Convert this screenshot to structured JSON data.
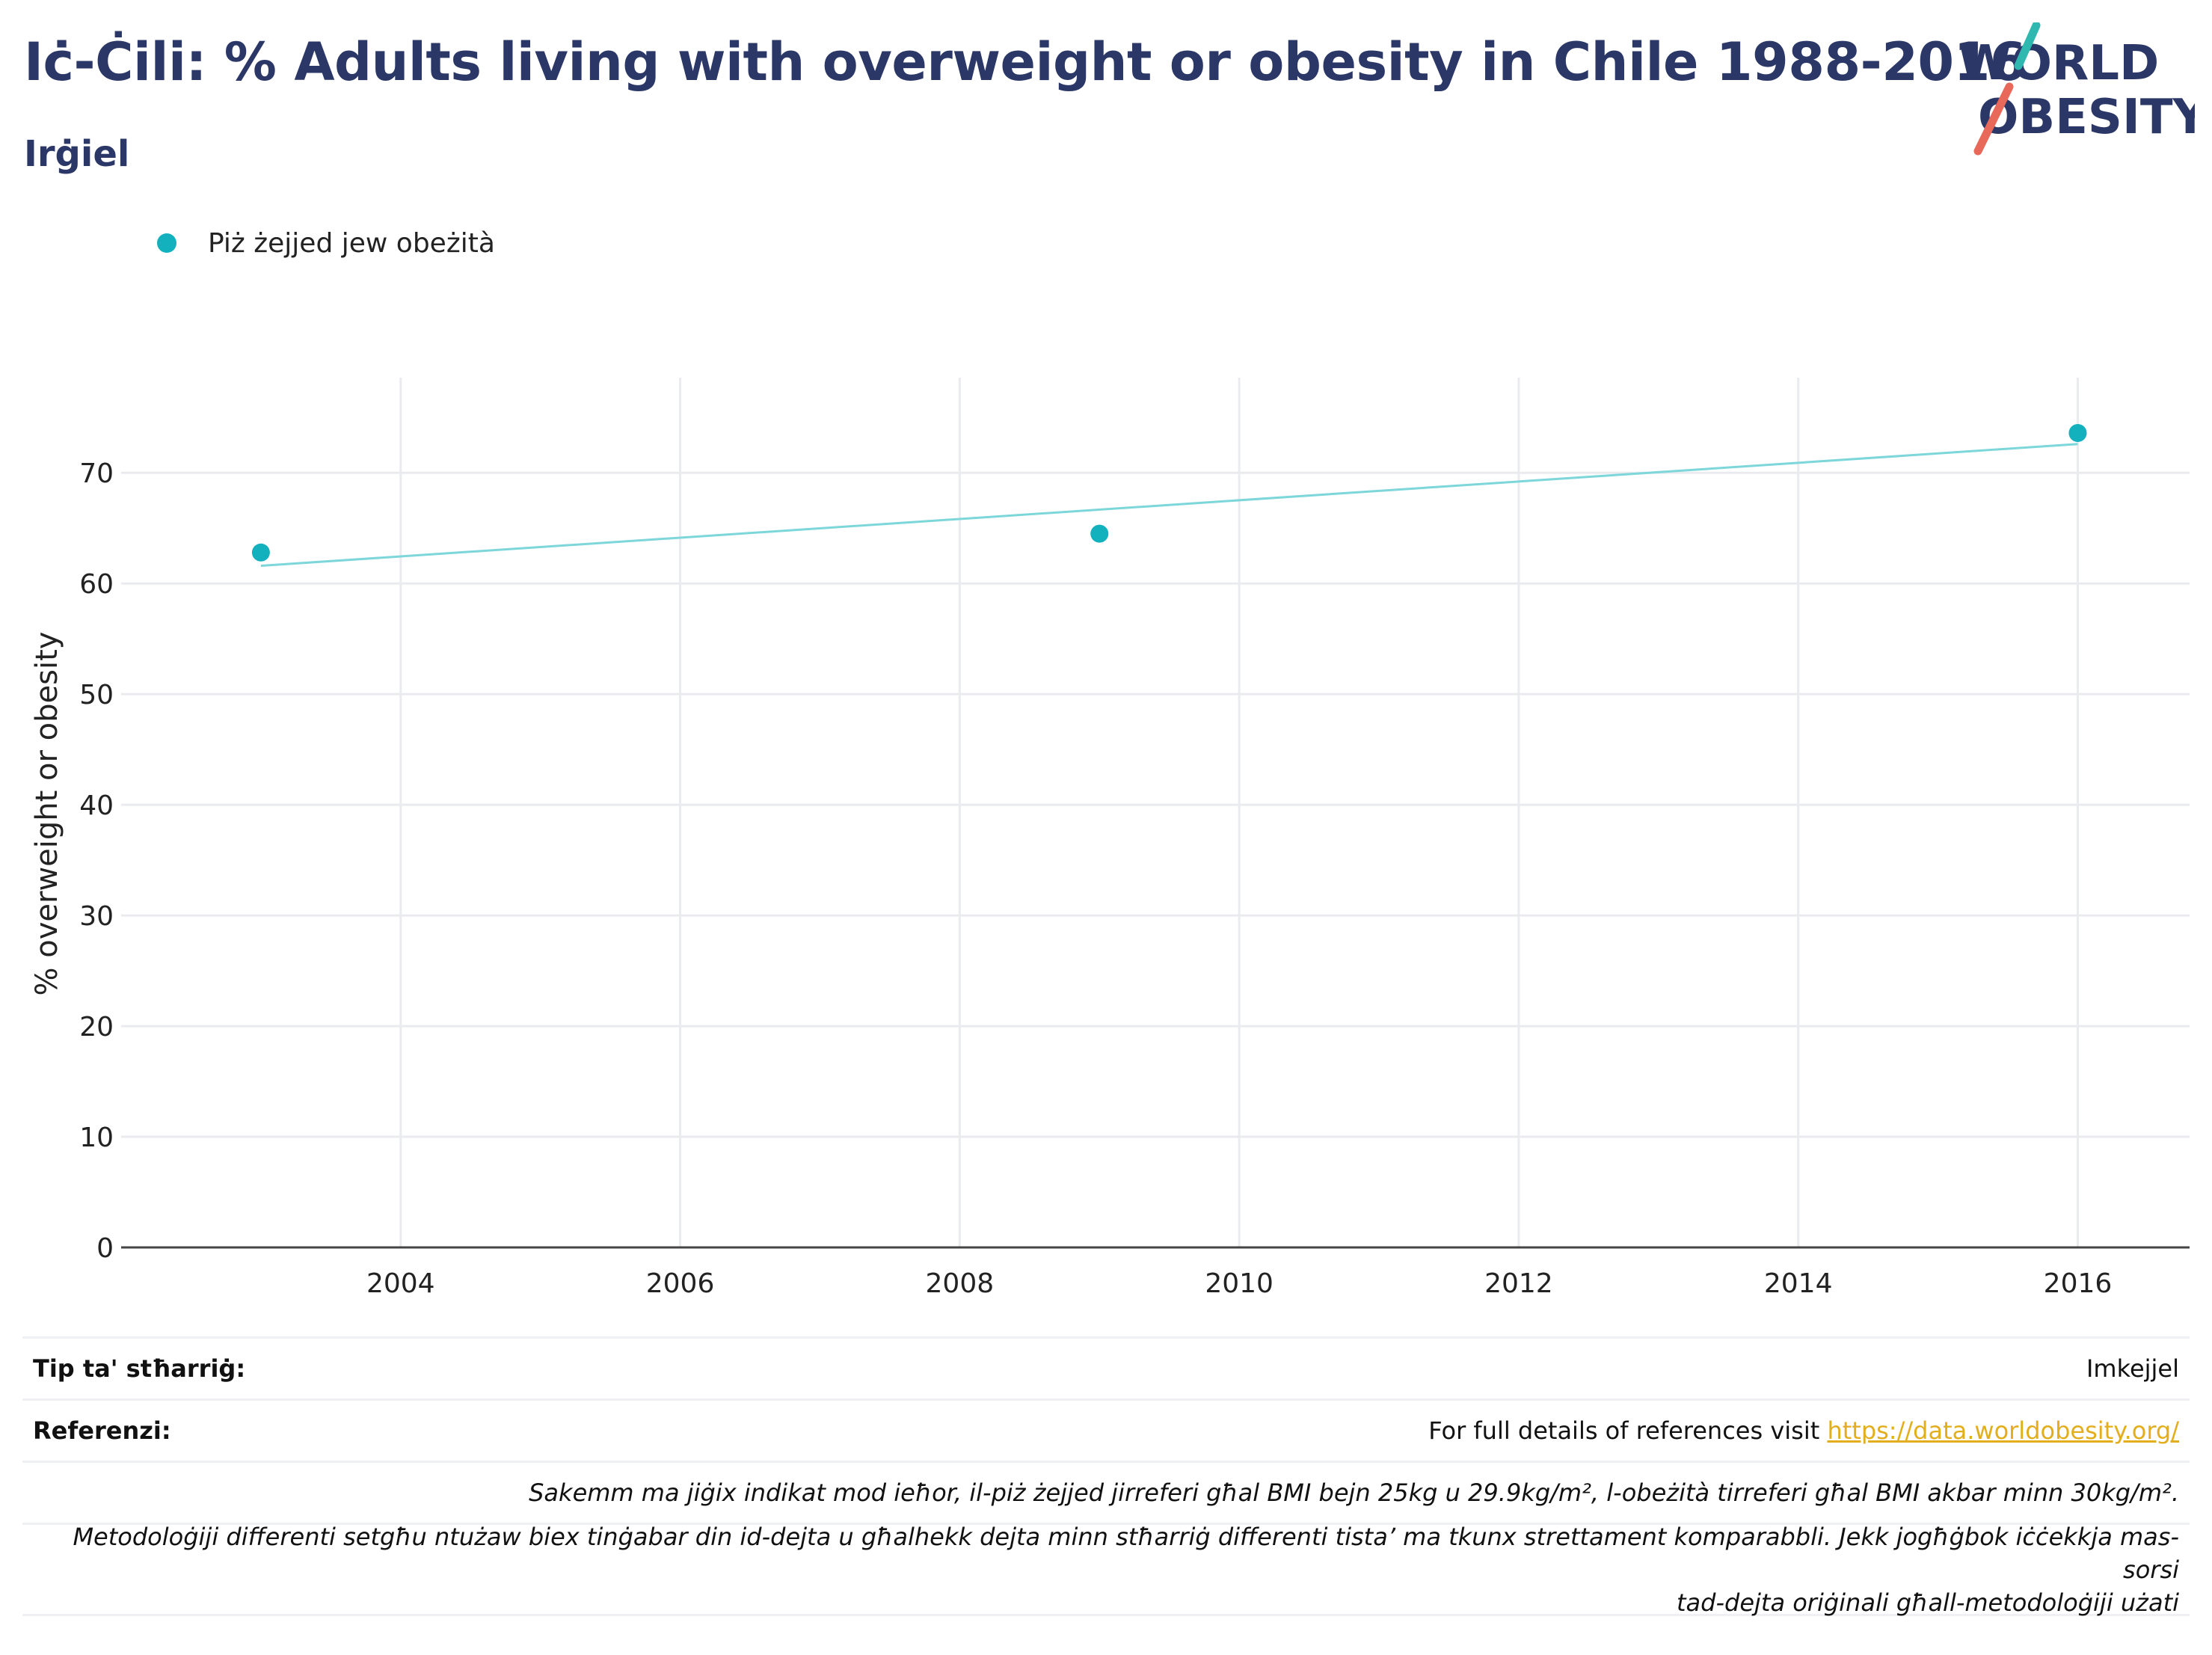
{
  "header": {
    "title": "Iċ-Ċili: % Adults living with overweight or obesity in Chile 1988-2016",
    "subtitle": "Irġiel"
  },
  "logo": {
    "line1": "WORLD",
    "line2": "OBESITY",
    "color_text": "#2b3766",
    "color_slash_top": "#2fb8b0",
    "color_slash_bottom": "#e8685a"
  },
  "legend": {
    "label": "Piż żejjed jew obeżità",
    "color": "#12b1bd"
  },
  "chart_data": {
    "type": "scatter",
    "title": "Iċ-Ċili: % Adults living with overweight or obesity in Chile 1988-2016",
    "subtitle": "Irġiel",
    "xlabel": "",
    "ylabel": "% overweight or obesity",
    "xlim": [
      2002.0,
      2016.8
    ],
    "ylim": [
      0,
      78.6
    ],
    "x_ticks": [
      2004,
      2006,
      2008,
      2010,
      2012,
      2014,
      2016
    ],
    "y_ticks": [
      0,
      10,
      20,
      30,
      40,
      50,
      60,
      70
    ],
    "grid": true,
    "legend_position": "top-left",
    "series": [
      {
        "name": "Piż żejjed jew obeżità",
        "color": "#12b1bd",
        "points": [
          {
            "x": 2003,
            "y": 62.8
          },
          {
            "x": 2009,
            "y": 64.5
          },
          {
            "x": 2016,
            "y": 73.6
          }
        ]
      }
    ],
    "trendline": {
      "color": "#7dd6da",
      "x": [
        2003,
        2016
      ],
      "y": [
        61.6,
        72.6
      ]
    }
  },
  "footer": {
    "source_type_label": "Tip ta' stħarriġ:",
    "source_type_value": "Imkejjel",
    "references_label": "Referenzi:",
    "references_text": "For full details of references visit",
    "references_link": "https://data.worldobesity.org/",
    "note1": "Sakemm ma jiġix indikat mod ieħor, il-piż żejjed jirreferi għal BMI bejn 25kg u 29.9kg/m², l-obeżità tirreferi għal BMI akbar minn 30kg/m².",
    "note2_line1": "Metodoloġiji differenti setgħu ntużaw biex tinġabar din id-dejta u għalhekk dejta minn stħarriġ differenti tista’ ma tkunx strettament komparabbli. Jekk jogħġbok iċċekkja mas-sorsi",
    "note2_line2": "tad-dejta oriġinali għall-metodoloġiji użati"
  }
}
